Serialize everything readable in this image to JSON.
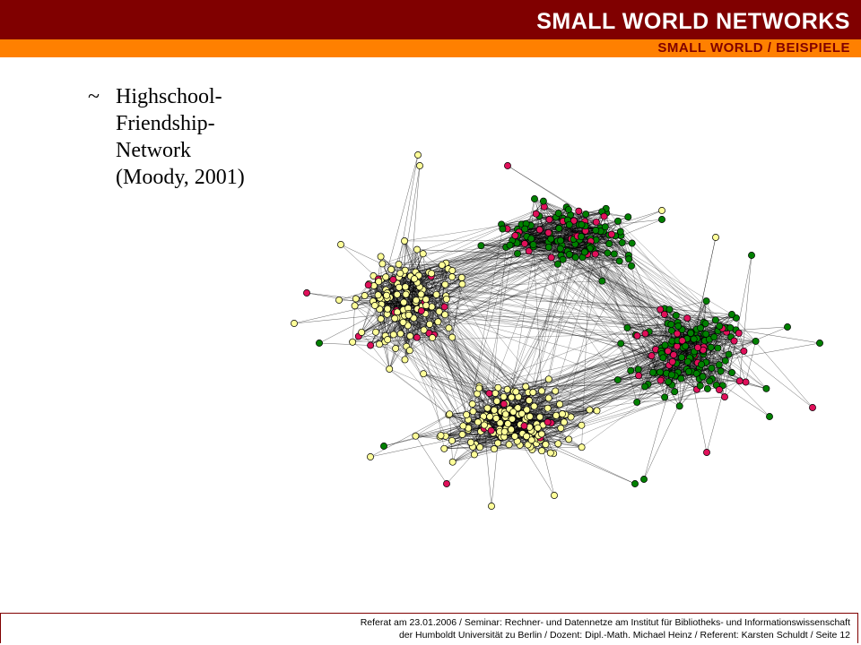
{
  "header": {
    "title": "SMALL WORLD NETWORKS",
    "subtitle": "SMALL WORLD / BEISPIELE",
    "colors": {
      "dark": "#800000",
      "accent": "#ff8000"
    }
  },
  "content": {
    "bullet_symbol": "~",
    "bullet_lines": [
      "Highschool-",
      "Friendship-",
      "Network",
      "(Moody, 2001)"
    ]
  },
  "network": {
    "node_colors": {
      "yellow": "#ffff99",
      "green": "#008000",
      "pink": "#e0105a"
    }
  },
  "footer": {
    "line1": "Referat am 23.01.2006 / Seminar: Rechner- und Datennetze am Institut für Bibliotheks- und Informationswissenschaft",
    "line2": "der Humboldt Universität zu Berlin / Dozent: Dipl.-Math. Michael Heinz / Referent: Karsten Schuldt / Seite 12"
  }
}
